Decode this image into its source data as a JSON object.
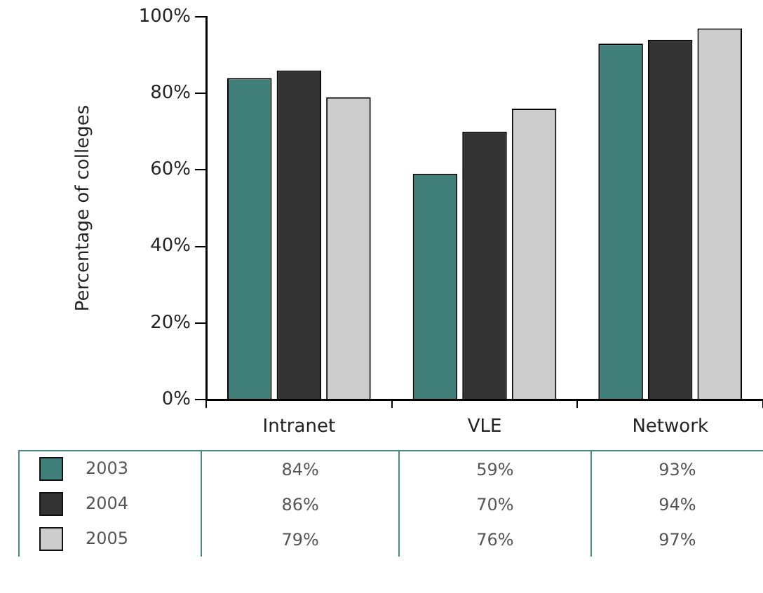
{
  "chart_data": {
    "type": "bar",
    "ylabel": "Percentage of colleges",
    "categories": [
      "Intranet",
      "VLE",
      "Network"
    ],
    "series": [
      {
        "name": "2003",
        "color": "#417f7b",
        "values": [
          84,
          59,
          93
        ],
        "value_labels": [
          "84%",
          "59%",
          "93%"
        ]
      },
      {
        "name": "2004",
        "color": "#333333",
        "values": [
          86,
          70,
          94
        ],
        "value_labels": [
          "86%",
          "70%",
          "94%"
        ]
      },
      {
        "name": "2005",
        "color": "#cccccc",
        "values": [
          79,
          76,
          97
        ],
        "value_labels": [
          "79%",
          "76%",
          "97%"
        ]
      }
    ],
    "ylim": [
      0,
      100
    ],
    "yticks": [
      {
        "value": 0,
        "label": "0%"
      },
      {
        "value": 20,
        "label": "20%"
      },
      {
        "value": 40,
        "label": "40%"
      },
      {
        "value": 60,
        "label": "60%"
      },
      {
        "value": 80,
        "label": "80%"
      },
      {
        "value": 100,
        "label": "100%"
      }
    ],
    "grid": false,
    "legend": "bottom"
  }
}
